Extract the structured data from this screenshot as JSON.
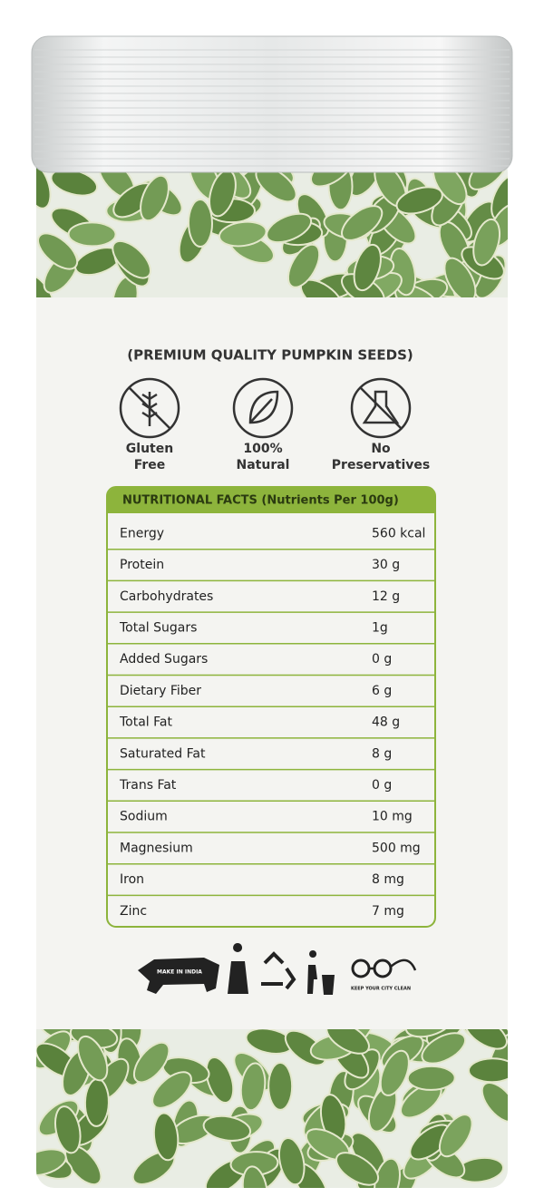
{
  "product": {
    "tagline": "(PREMIUM QUALITY PUMPKIN SEEDS)",
    "badges": [
      [
        "Gluten",
        "Free"
      ],
      [
        "100%",
        "Natural"
      ],
      [
        "No",
        "Preservatives"
      ]
    ],
    "table": {
      "header": "NUTRITIONAL FACTS (Nutrients Per 100g)",
      "rows": [
        [
          "Energy",
          "560 kcal"
        ],
        [
          "Protein",
          "30 g"
        ],
        [
          "Carbohydrates",
          "12 g"
        ],
        [
          "Total Sugars",
          "1g"
        ],
        [
          "Added Sugars",
          "0 g"
        ],
        [
          "Dietary Fiber",
          "6 g"
        ],
        [
          "Total Fat",
          "48 g"
        ],
        [
          "Saturated Fat",
          "8 g"
        ],
        [
          "Trans Fat",
          "0 g"
        ],
        [
          "Sodium",
          "10 mg"
        ],
        [
          "Magnesium",
          "500 mg"
        ],
        [
          "Iron",
          "8 mg"
        ],
        [
          "Zinc",
          "7 mg"
        ]
      ]
    },
    "logos": {
      "make_in_india": "MAKE IN INDIA",
      "clean_city": "KEEP YOUR CITY CLEAN"
    }
  }
}
